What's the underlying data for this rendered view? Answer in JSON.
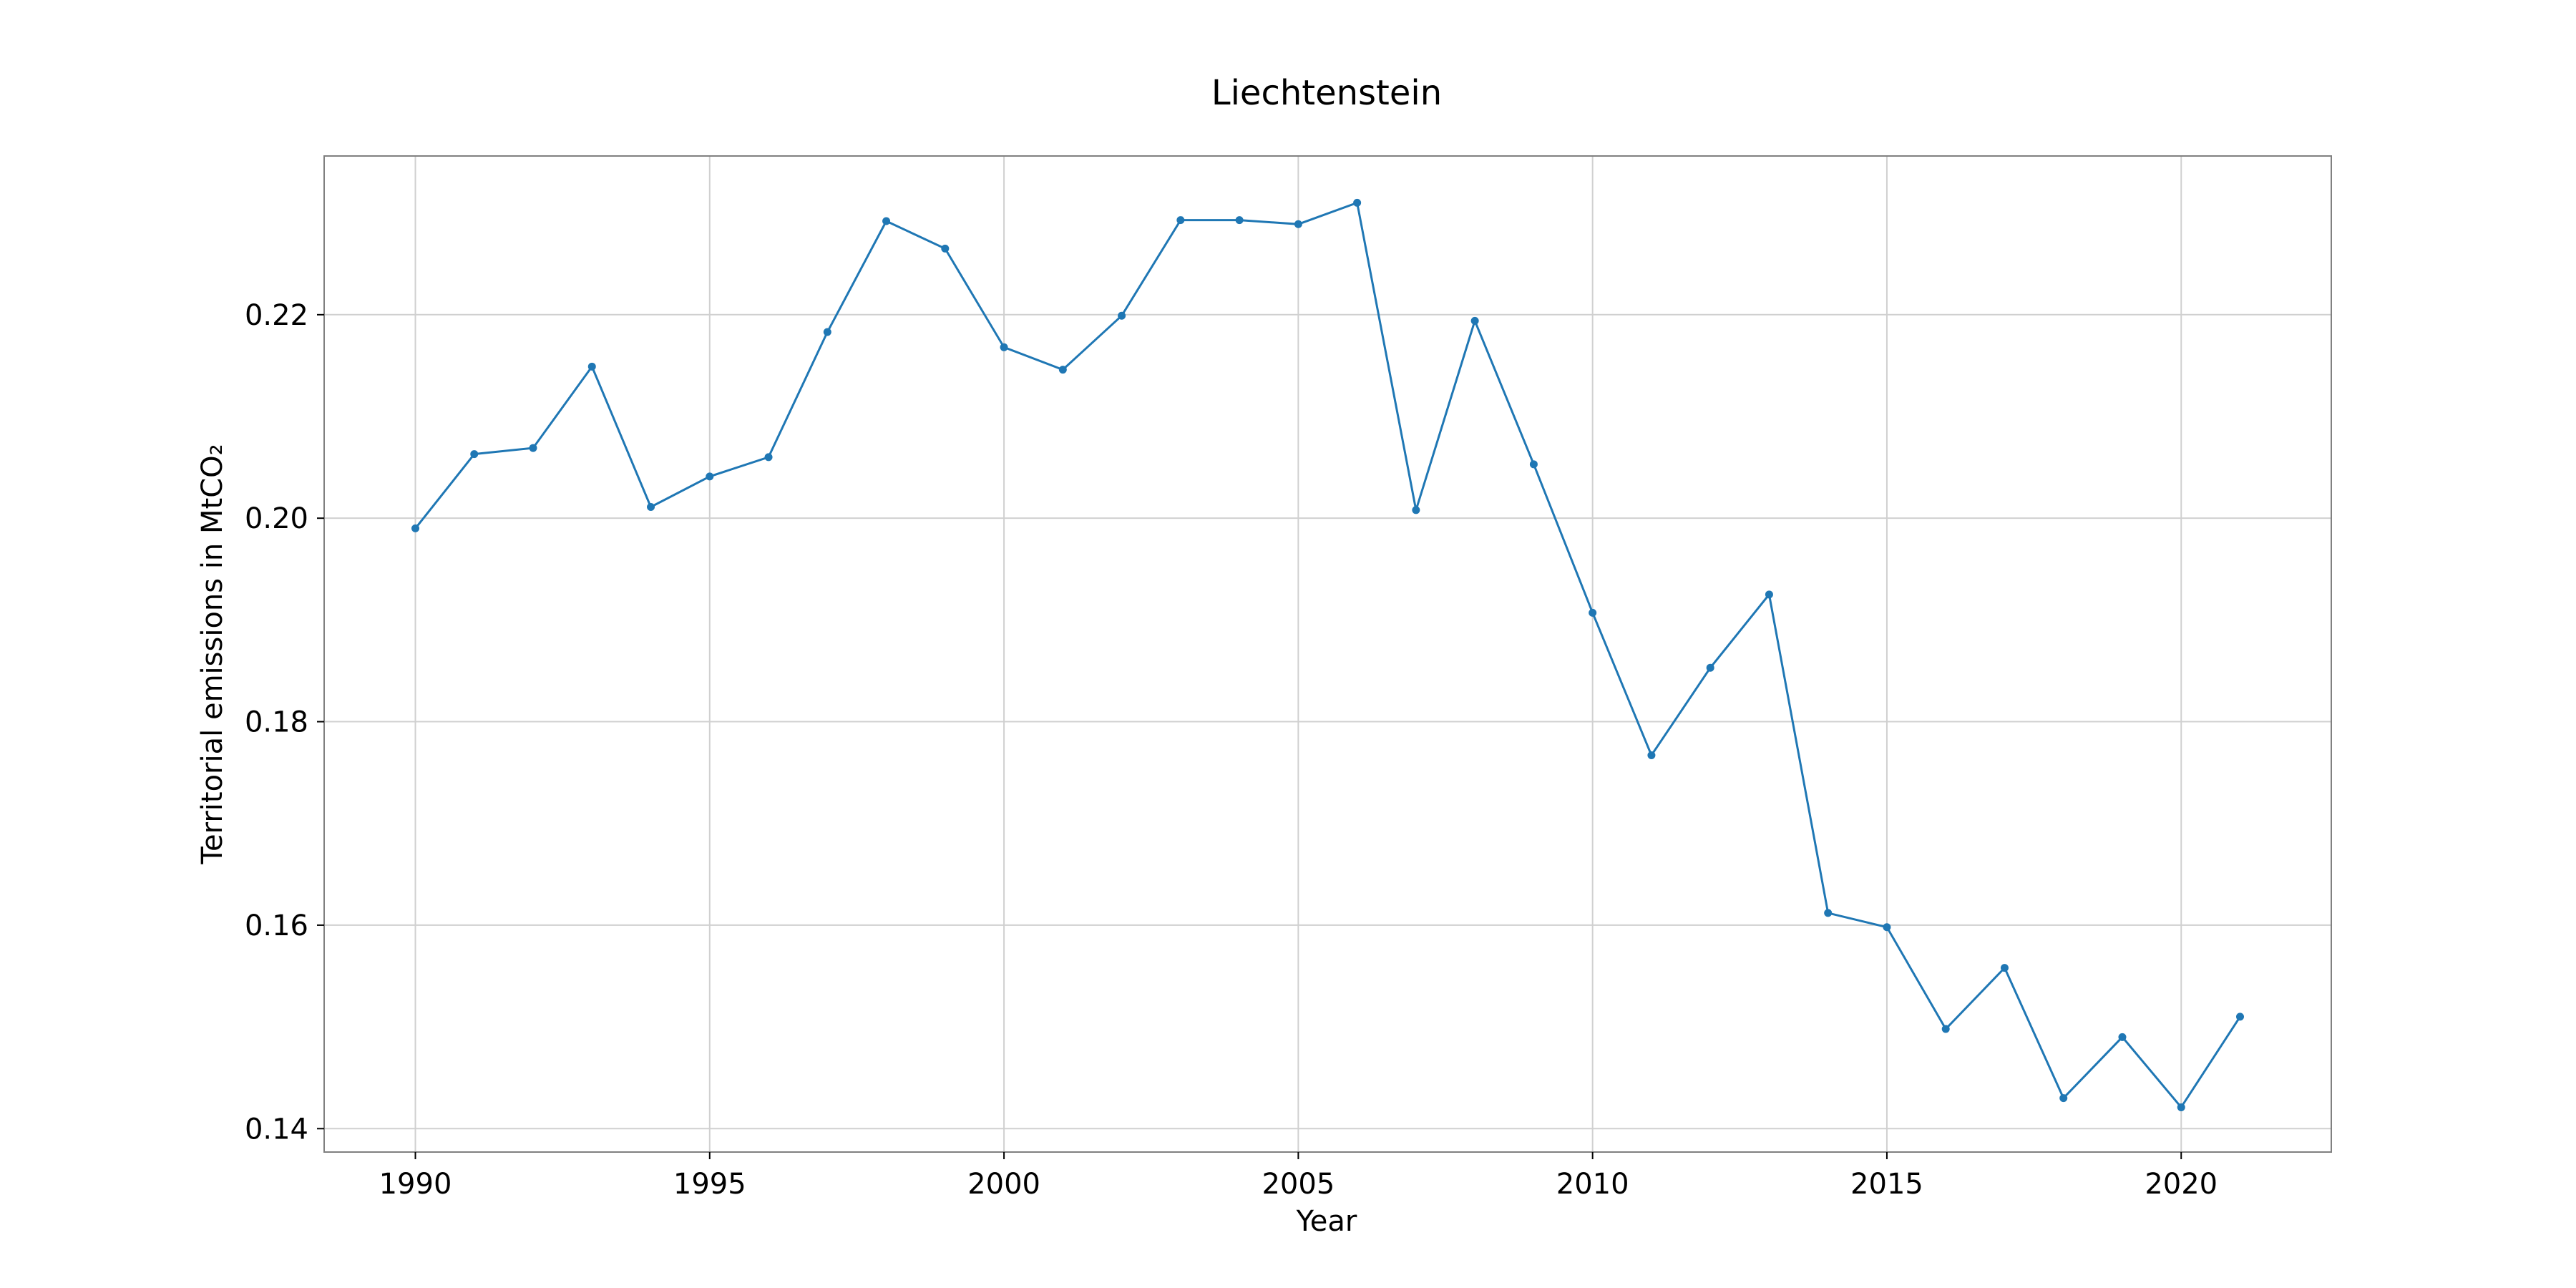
{
  "chart_data": {
    "type": "line",
    "title": "Liechtenstein",
    "xlabel": "Year",
    "ylabel": "Territorial emissions in MtCO₂",
    "xlim": [
      1988.45,
      2022.55
    ],
    "ylim": [
      0.1377,
      0.2356
    ],
    "xticks": [
      1990,
      1995,
      2000,
      2005,
      2010,
      2015,
      2020
    ],
    "xtick_labels": [
      "1990",
      "1995",
      "2000",
      "2005",
      "2010",
      "2015",
      "2020"
    ],
    "yticks": [
      0.14,
      0.16,
      0.18,
      0.2,
      0.22
    ],
    "ytick_labels": [
      "0.14",
      "0.16",
      "0.18",
      "0.20",
      "0.22"
    ],
    "grid": true,
    "color": "#1f77b4",
    "x": [
      1990,
      1991,
      1992,
      1993,
      1994,
      1995,
      1996,
      1997,
      1998,
      1999,
      2000,
      2001,
      2002,
      2003,
      2004,
      2005,
      2006,
      2007,
      2008,
      2009,
      2010,
      2011,
      2012,
      2013,
      2014,
      2015,
      2016,
      2017,
      2018,
      2019,
      2020,
      2021
    ],
    "values": [
      0.199,
      0.2063,
      0.2069,
      0.2149,
      0.2011,
      0.2041,
      0.206,
      0.2183,
      0.2292,
      0.2265,
      0.2168,
      0.2146,
      0.2199,
      0.2293,
      0.2293,
      0.2289,
      0.231,
      0.2008,
      0.2194,
      0.2053,
      0.1907,
      0.1767,
      0.1853,
      0.1925,
      0.1612,
      0.1598,
      0.1498,
      0.1558,
      0.143,
      0.149,
      0.1421,
      0.151
    ]
  }
}
